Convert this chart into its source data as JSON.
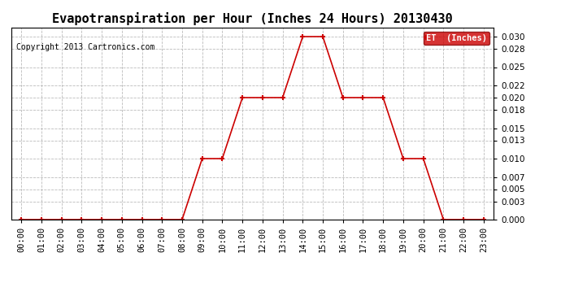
{
  "title": "Evapotranspiration per Hour (Inches 24 Hours) 20130430",
  "copyright": "Copyright 2013 Cartronics.com",
  "legend_label": "ET  (Inches)",
  "legend_bg": "#cc0000",
  "line_color": "#cc0000",
  "marker": "+",
  "hours": [
    0,
    1,
    2,
    3,
    4,
    5,
    6,
    7,
    8,
    9,
    10,
    11,
    12,
    13,
    14,
    15,
    16,
    17,
    18,
    19,
    20,
    21,
    22,
    23
  ],
  "values": [
    0.0,
    0.0,
    0.0,
    0.0,
    0.0,
    0.0,
    0.0,
    0.0,
    0.0,
    0.01,
    0.01,
    0.02,
    0.02,
    0.02,
    0.03,
    0.03,
    0.02,
    0.02,
    0.02,
    0.01,
    0.01,
    0.0,
    0.0,
    0.0
  ],
  "xlabels": [
    "00:00",
    "01:00",
    "02:00",
    "03:00",
    "04:00",
    "05:00",
    "06:00",
    "07:00",
    "08:00",
    "09:00",
    "10:00",
    "11:00",
    "12:00",
    "13:00",
    "14:00",
    "15:00",
    "16:00",
    "17:00",
    "18:00",
    "19:00",
    "20:00",
    "21:00",
    "22:00",
    "23:00"
  ],
  "yticks": [
    0.0,
    0.003,
    0.005,
    0.007,
    0.01,
    0.013,
    0.015,
    0.018,
    0.02,
    0.022,
    0.025,
    0.028,
    0.03
  ],
  "ylim": [
    0.0,
    0.0315
  ],
  "bg_color": "#ffffff",
  "plot_bg": "#ffffff",
  "grid_color": "#bbbbbb",
  "title_fontsize": 11,
  "copyright_fontsize": 7,
  "tick_fontsize": 7.5
}
